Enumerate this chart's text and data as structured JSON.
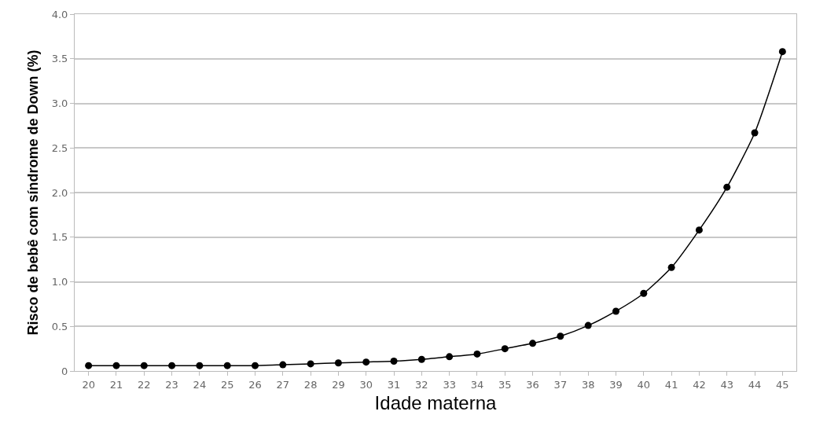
{
  "chart_data": {
    "type": "line",
    "xlabel": "Idade materna",
    "ylabel": "Risco de bebê com síndrome de Down (%)",
    "categories": [
      "20",
      "21",
      "22",
      "23",
      "24",
      "25",
      "26",
      "27",
      "28",
      "29",
      "30",
      "31",
      "32",
      "33",
      "34",
      "35",
      "36",
      "37",
      "38",
      "39",
      "40",
      "41",
      "42",
      "43",
      "44",
      "45"
    ],
    "series": [
      {
        "color": "#000000",
        "values": [
          0.06,
          0.06,
          0.06,
          0.06,
          0.06,
          0.06,
          0.06,
          0.07,
          0.08,
          0.09,
          0.1,
          0.11,
          0.13,
          0.16,
          0.19,
          0.25,
          0.31,
          0.39,
          0.51,
          0.67,
          0.87,
          1.16,
          1.58,
          2.06,
          2.67,
          3.58
        ]
      }
    ],
    "ylim": [
      0,
      4
    ],
    "yticks": [
      {
        "value": 0,
        "label": "0"
      },
      {
        "value": 0.5,
        "label": "0.5"
      },
      {
        "value": 1,
        "label": "1.0"
      },
      {
        "value": 1.5,
        "label": "1.5"
      },
      {
        "value": 2,
        "label": "2.0"
      },
      {
        "value": 2.5,
        "label": "2.5"
      },
      {
        "value": 3,
        "label": "3.0"
      },
      {
        "value": 3.5,
        "label": "3.5"
      },
      {
        "value": 4,
        "label": "4.0"
      }
    ],
    "grid": "y",
    "marker": "circle",
    "line_style": "solid"
  }
}
